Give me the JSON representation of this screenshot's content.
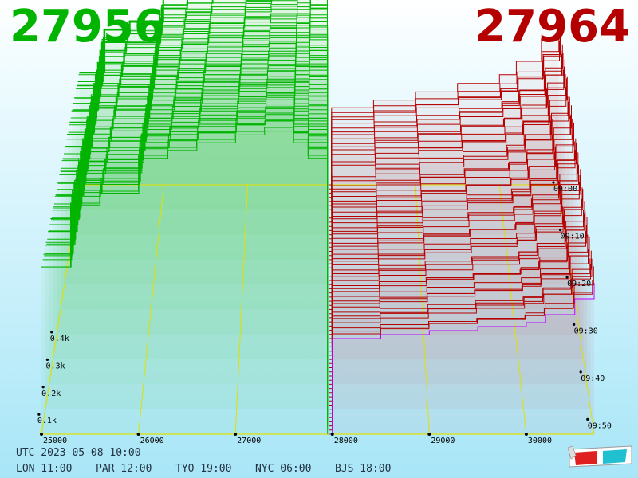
{
  "header": {
    "bid": "27956",
    "ask": "27964"
  },
  "footer": {
    "utc": "UTC 2023-05-08 10:00",
    "zones": [
      "LON 11:00",
      "PAR 12:00",
      "TYO 19:00",
      "NYC 06:00",
      "BJS 18:00"
    ]
  },
  "chart_data": {
    "type": "area",
    "title": "",
    "xlabel": "",
    "ylabel": "",
    "x_ticks": [
      "25000",
      "26000",
      "27000",
      "28000",
      "29000",
      "30000"
    ],
    "y_ticks": [
      "0.1k",
      "0.2k",
      "0.3k",
      "0.4k"
    ],
    "time_ticks": [
      "09:00",
      "09:10",
      "09:20",
      "09:30",
      "09:40",
      "09:50"
    ],
    "xlim": [
      25000,
      30700
    ],
    "ylim": [
      0,
      1000
    ],
    "series": [
      {
        "side": "bid",
        "x": [
          25000,
          25300,
          25600,
          26000,
          26300,
          26600,
          27000,
          27300,
          27600,
          27750,
          27950
        ],
        "y": [
          420,
          580,
          610,
          700,
          720,
          740,
          760,
          770,
          740,
          700,
          0
        ]
      },
      {
        "side": "ask",
        "x": [
          27964,
          28000,
          28500,
          29000,
          29500,
          30000,
          30200,
          30500,
          30700
        ],
        "y": [
          0,
          240,
          250,
          260,
          270,
          280,
          300,
          340,
          380
        ]
      }
    ],
    "colors": {
      "bid": "#00b400",
      "ask": "#b40000",
      "current": "#c000ff",
      "grid": "#e0e000"
    }
  }
}
